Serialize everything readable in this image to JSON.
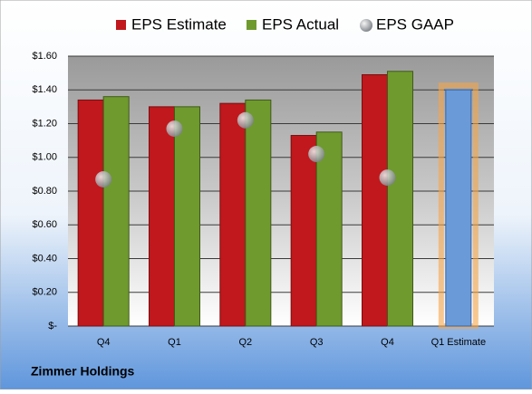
{
  "chart_data": {
    "type": "bar",
    "categories": [
      "Q4",
      "Q1",
      "Q2",
      "Q3",
      "Q4",
      "Q1 Estimate"
    ],
    "series": [
      {
        "name": "EPS Estimate",
        "color": "#c0181c",
        "values": [
          1.34,
          1.3,
          1.32,
          1.13,
          1.49,
          1.4
        ]
      },
      {
        "name": "EPS Actual",
        "color": "#6f9a2e",
        "values": [
          1.36,
          1.3,
          1.34,
          1.15,
          1.51,
          null
        ]
      },
      {
        "name": "EPS GAAP",
        "color": "#9aa0a6",
        "values": [
          0.87,
          1.17,
          1.22,
          1.02,
          0.88,
          null
        ]
      }
    ],
    "highlight_color": "#6a9ad8",
    "ylim": [
      0,
      1.6
    ],
    "yticks": [
      {
        "value": 0,
        "label": "$-"
      },
      {
        "value": 0.2,
        "label": "$0.20"
      },
      {
        "value": 0.4,
        "label": "$0.40"
      },
      {
        "value": 0.6,
        "label": "$0.60"
      },
      {
        "value": 0.8,
        "label": "$0.80"
      },
      {
        "value": 1.0,
        "label": "$1.00"
      },
      {
        "value": 1.2,
        "label": "$1.20"
      },
      {
        "value": 1.4,
        "label": "$1.40"
      },
      {
        "value": 1.6,
        "label": "$1.60"
      }
    ],
    "grid": true,
    "footer": "Zimmer Holdings"
  }
}
